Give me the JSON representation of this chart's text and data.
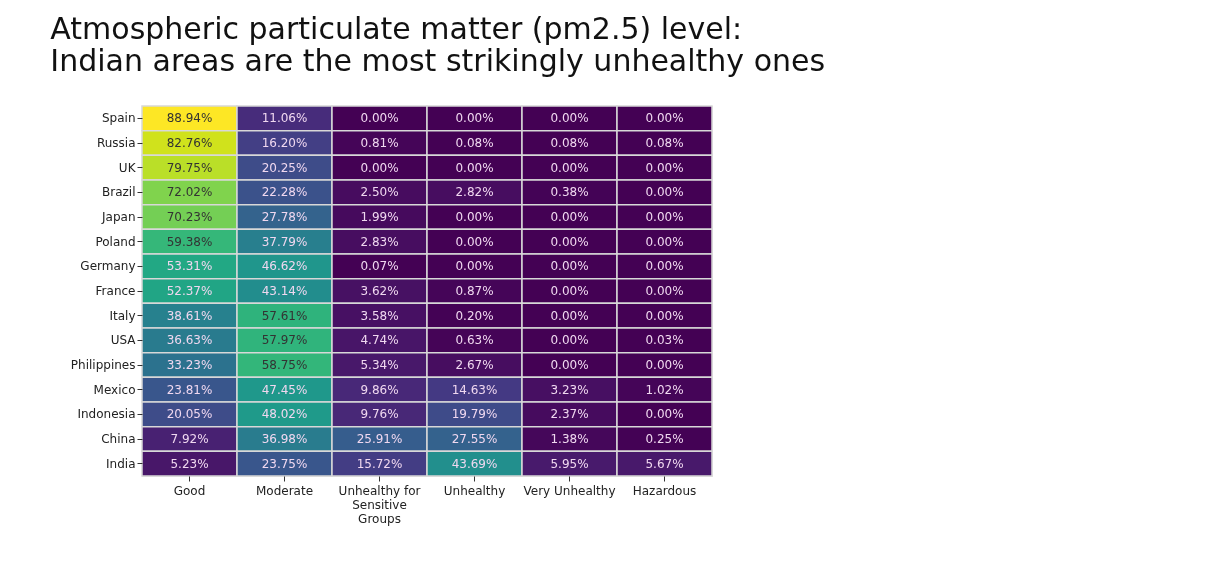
{
  "chart_data": {
    "type": "heatmap",
    "title": [
      "Atmospheric particulate matter (pm2.5) level:",
      "Indian areas are the most strikingly unhealthy ones"
    ],
    "categories": [
      "Good",
      "Moderate",
      "Unhealthy for Sensitive Groups",
      "Unhealthy",
      "Very Unhealthy",
      "Hazardous"
    ],
    "y_categories": [
      "Spain",
      "Russia",
      "UK",
      "Brazil",
      "Japan",
      "Poland",
      "Germany",
      "France",
      "Italy",
      "USA",
      "Philippines",
      "Mexico",
      "Indonesia",
      "China",
      "India"
    ],
    "cells": [
      [
        88.94,
        11.06,
        0.0,
        0.0,
        0.0,
        0.0
      ],
      [
        82.76,
        16.2,
        0.81,
        0.08,
        0.08,
        0.08
      ],
      [
        79.75,
        20.25,
        0.0,
        0.0,
        0.0,
        0.0
      ],
      [
        72.02,
        22.28,
        2.5,
        2.82,
        0.38,
        0.0
      ],
      [
        70.23,
        27.78,
        1.99,
        0.0,
        0.0,
        0.0
      ],
      [
        59.38,
        37.79,
        2.83,
        0.0,
        0.0,
        0.0
      ],
      [
        53.31,
        46.62,
        0.07,
        0.0,
        0.0,
        0.0
      ],
      [
        52.37,
        43.14,
        3.62,
        0.87,
        0.0,
        0.0
      ],
      [
        38.61,
        57.61,
        3.58,
        0.2,
        0.0,
        0.0
      ],
      [
        36.63,
        57.97,
        4.74,
        0.63,
        0.0,
        0.03
      ],
      [
        33.23,
        58.75,
        5.34,
        2.67,
        0.0,
        0.0
      ],
      [
        23.81,
        47.45,
        9.86,
        14.63,
        3.23,
        1.02
      ],
      [
        20.05,
        48.02,
        9.76,
        19.79,
        2.37,
        0.0
      ],
      [
        7.92,
        36.98,
        25.91,
        27.55,
        1.38,
        0.25
      ],
      [
        5.23,
        23.75,
        15.72,
        43.69,
        5.95,
        5.67
      ]
    ],
    "cell_labels": [
      [
        "88.94%",
        "11.06%",
        "0.00%",
        "0.00%",
        "0.00%",
        "0.00%"
      ],
      [
        "82.76%",
        "16.20%",
        "0.81%",
        "0.08%",
        "0.08%",
        "0.08%"
      ],
      [
        "79.75%",
        "20.25%",
        "0.00%",
        "0.00%",
        "0.00%",
        "0.00%"
      ],
      [
        "72.02%",
        "22.28%",
        "2.50%",
        "2.82%",
        "0.38%",
        "0.00%"
      ],
      [
        "70.23%",
        "27.78%",
        "1.99%",
        "0.00%",
        "0.00%",
        "0.00%"
      ],
      [
        "59.38%",
        "37.79%",
        "2.83%",
        "0.00%",
        "0.00%",
        "0.00%"
      ],
      [
        "53.31%",
        "46.62%",
        "0.07%",
        "0.00%",
        "0.00%",
        "0.00%"
      ],
      [
        "52.37%",
        "43.14%",
        "3.62%",
        "0.87%",
        "0.00%",
        "0.00%"
      ],
      [
        "38.61%",
        "57.61%",
        "3.58%",
        "0.20%",
        "0.00%",
        "0.00%"
      ],
      [
        "36.63%",
        "57.97%",
        "4.74%",
        "0.63%",
        "0.00%",
        "0.03%"
      ],
      [
        "33.23%",
        "58.75%",
        "5.34%",
        "2.67%",
        "0.00%",
        "0.00%"
      ],
      [
        "23.81%",
        "47.45%",
        "9.86%",
        "14.63%",
        "3.23%",
        "1.02%"
      ],
      [
        "20.05%",
        "48.02%",
        "9.76%",
        "19.79%",
        "2.37%",
        "0.00%"
      ],
      [
        "7.92%",
        "36.98%",
        "25.91%",
        "27.55%",
        "1.38%",
        "0.25%"
      ],
      [
        "5.23%",
        "23.75%",
        "15.72%",
        "43.69%",
        "5.95%",
        "5.67%"
      ]
    ]
  }
}
